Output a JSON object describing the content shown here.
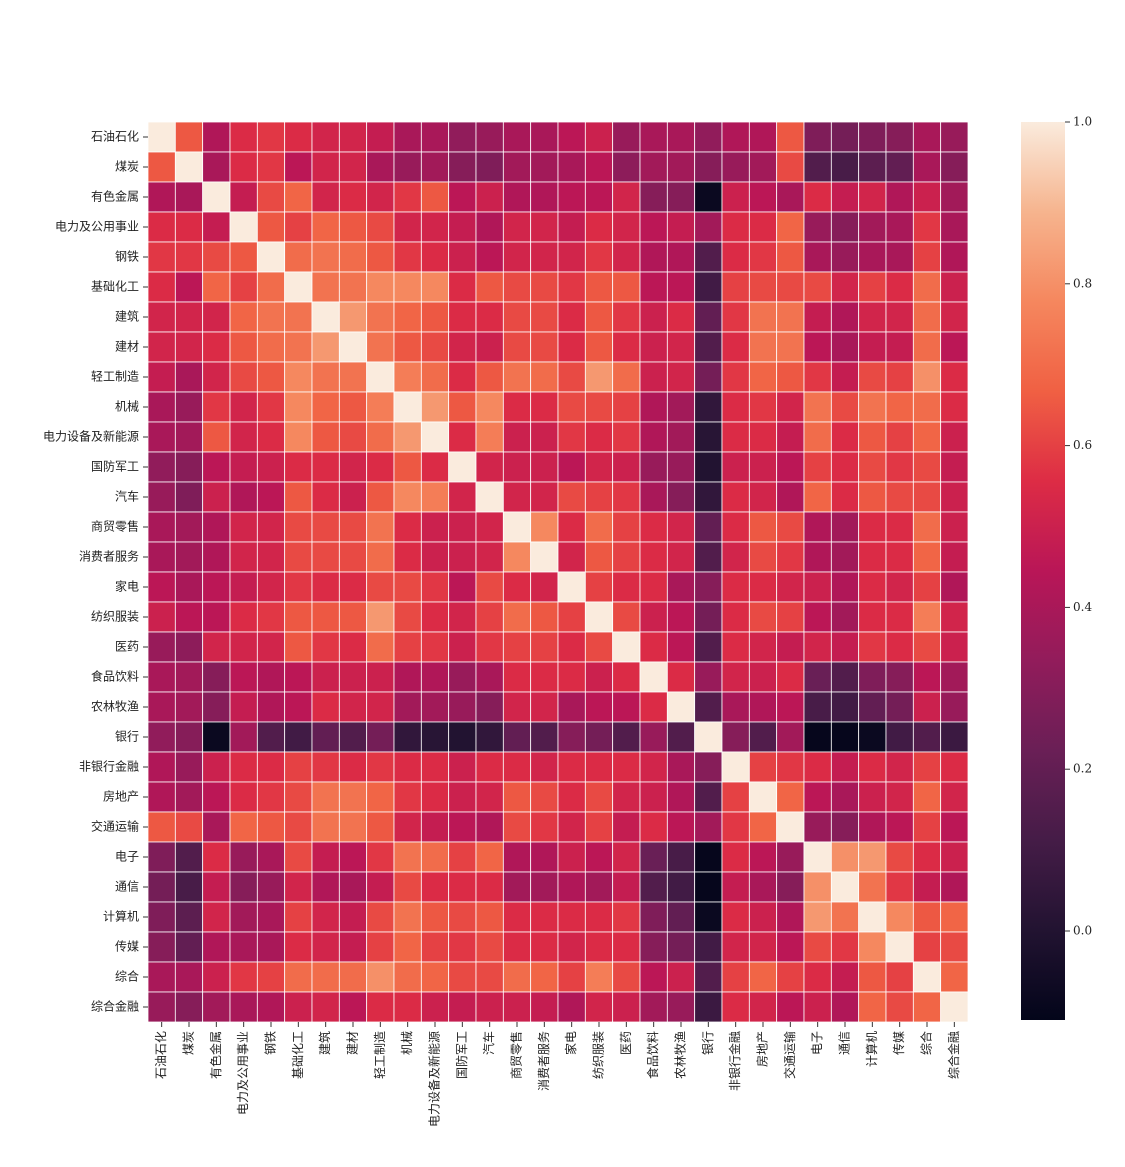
{
  "chart_data": {
    "type": "heatmap",
    "colormap": "rocket",
    "cell_border": "#ffffff",
    "categories": [
      "石油石化",
      "煤炭",
      "有色金属",
      "电力及公用事业",
      "钢铁",
      "基础化工",
      "建筑",
      "建材",
      "轻工制造",
      "机械",
      "电力设备及新能源",
      "国防军工",
      "汽车",
      "商贸零售",
      "消费者服务",
      "家电",
      "纺织服装",
      "医药",
      "食品饮料",
      "农林牧渔",
      "银行",
      "非银行金融",
      "房地产",
      "交通运输",
      "电子",
      "通信",
      "计算机",
      "传媒",
      "综合",
      "综合金融"
    ],
    "values": [
      [
        1,
        0.65,
        0.42,
        0.55,
        0.58,
        0.55,
        0.52,
        0.52,
        0.48,
        0.4,
        0.4,
        0.33,
        0.35,
        0.4,
        0.4,
        0.45,
        0.5,
        0.35,
        0.4,
        0.4,
        0.33,
        0.42,
        0.42,
        0.65,
        0.28,
        0.25,
        0.28,
        0.3,
        0.4,
        0.35
      ],
      [
        0.65,
        1,
        0.4,
        0.55,
        0.58,
        0.45,
        0.52,
        0.52,
        0.4,
        0.35,
        0.38,
        0.3,
        0.28,
        0.38,
        0.38,
        0.4,
        0.45,
        0.32,
        0.38,
        0.38,
        0.3,
        0.35,
        0.38,
        0.62,
        0.15,
        0.12,
        0.18,
        0.2,
        0.4,
        0.3
      ],
      [
        0.42,
        0.4,
        1,
        0.48,
        0.62,
        0.68,
        0.52,
        0.55,
        0.52,
        0.58,
        0.65,
        0.45,
        0.5,
        0.42,
        0.42,
        0.45,
        0.45,
        0.52,
        0.3,
        0.3,
        -0.08,
        0.5,
        0.45,
        0.4,
        0.55,
        0.48,
        0.52,
        0.42,
        0.5,
        0.38
      ],
      [
        0.55,
        0.55,
        0.48,
        1,
        0.65,
        0.6,
        0.68,
        0.65,
        0.62,
        0.52,
        0.52,
        0.48,
        0.42,
        0.52,
        0.52,
        0.48,
        0.55,
        0.52,
        0.45,
        0.48,
        0.38,
        0.55,
        0.55,
        0.68,
        0.35,
        0.3,
        0.38,
        0.4,
        0.58,
        0.4
      ],
      [
        0.58,
        0.58,
        0.62,
        0.65,
        1,
        0.7,
        0.72,
        0.7,
        0.65,
        0.58,
        0.55,
        0.5,
        0.45,
        0.52,
        0.52,
        0.52,
        0.58,
        0.52,
        0.42,
        0.42,
        0.15,
        0.55,
        0.58,
        0.65,
        0.4,
        0.35,
        0.4,
        0.4,
        0.6,
        0.42
      ],
      [
        0.55,
        0.45,
        0.68,
        0.6,
        0.7,
        1,
        0.72,
        0.72,
        0.78,
        0.78,
        0.78,
        0.55,
        0.65,
        0.62,
        0.62,
        0.58,
        0.65,
        0.65,
        0.45,
        0.45,
        0.1,
        0.6,
        0.62,
        0.62,
        0.62,
        0.52,
        0.6,
        0.55,
        0.7,
        0.5
      ],
      [
        0.52,
        0.52,
        0.52,
        0.68,
        0.72,
        0.72,
        1,
        0.82,
        0.72,
        0.68,
        0.65,
        0.55,
        0.55,
        0.62,
        0.62,
        0.55,
        0.65,
        0.58,
        0.5,
        0.55,
        0.2,
        0.58,
        0.72,
        0.72,
        0.48,
        0.42,
        0.52,
        0.52,
        0.7,
        0.52
      ],
      [
        0.52,
        0.52,
        0.55,
        0.65,
        0.7,
        0.72,
        0.82,
        1,
        0.72,
        0.65,
        0.62,
        0.52,
        0.5,
        0.62,
        0.62,
        0.55,
        0.65,
        0.55,
        0.5,
        0.52,
        0.15,
        0.55,
        0.72,
        0.72,
        0.45,
        0.4,
        0.48,
        0.48,
        0.7,
        0.45
      ],
      [
        0.48,
        0.4,
        0.52,
        0.62,
        0.65,
        0.78,
        0.72,
        0.72,
        1,
        0.75,
        0.7,
        0.55,
        0.65,
        0.72,
        0.7,
        0.62,
        0.82,
        0.7,
        0.5,
        0.52,
        0.25,
        0.58,
        0.68,
        0.65,
        0.58,
        0.48,
        0.62,
        0.6,
        0.8,
        0.55
      ],
      [
        0.4,
        0.35,
        0.58,
        0.52,
        0.58,
        0.78,
        0.68,
        0.65,
        0.75,
        1,
        0.82,
        0.65,
        0.78,
        0.55,
        0.55,
        0.62,
        0.62,
        0.6,
        0.42,
        0.38,
        0.05,
        0.55,
        0.58,
        0.52,
        0.72,
        0.62,
        0.72,
        0.68,
        0.7,
        0.55
      ],
      [
        0.4,
        0.38,
        0.65,
        0.52,
        0.55,
        0.78,
        0.65,
        0.62,
        0.7,
        0.82,
        1,
        0.55,
        0.75,
        0.5,
        0.5,
        0.58,
        0.55,
        0.58,
        0.42,
        0.38,
        0.02,
        0.55,
        0.55,
        0.48,
        0.7,
        0.55,
        0.65,
        0.6,
        0.68,
        0.5
      ],
      [
        0.33,
        0.3,
        0.45,
        0.48,
        0.5,
        0.55,
        0.55,
        0.52,
        0.55,
        0.65,
        0.55,
        1,
        0.52,
        0.5,
        0.5,
        0.45,
        0.52,
        0.5,
        0.35,
        0.35,
        0.0,
        0.5,
        0.5,
        0.45,
        0.6,
        0.55,
        0.62,
        0.58,
        0.62,
        0.48
      ],
      [
        0.35,
        0.28,
        0.5,
        0.42,
        0.45,
        0.65,
        0.55,
        0.5,
        0.65,
        0.78,
        0.75,
        0.52,
        1,
        0.52,
        0.52,
        0.62,
        0.6,
        0.58,
        0.4,
        0.3,
        0.05,
        0.55,
        0.52,
        0.42,
        0.68,
        0.55,
        0.65,
        0.62,
        0.62,
        0.5
      ],
      [
        0.4,
        0.38,
        0.42,
        0.52,
        0.52,
        0.62,
        0.62,
        0.62,
        0.72,
        0.55,
        0.5,
        0.5,
        0.52,
        1,
        0.78,
        0.55,
        0.7,
        0.6,
        0.55,
        0.52,
        0.2,
        0.55,
        0.65,
        0.62,
        0.42,
        0.38,
        0.55,
        0.55,
        0.7,
        0.5
      ],
      [
        0.4,
        0.38,
        0.42,
        0.52,
        0.52,
        0.62,
        0.62,
        0.62,
        0.7,
        0.55,
        0.5,
        0.5,
        0.52,
        0.78,
        1,
        0.52,
        0.65,
        0.6,
        0.55,
        0.52,
        0.15,
        0.52,
        0.62,
        0.58,
        0.42,
        0.38,
        0.55,
        0.55,
        0.68,
        0.48
      ],
      [
        0.45,
        0.4,
        0.45,
        0.48,
        0.52,
        0.58,
        0.55,
        0.55,
        0.62,
        0.62,
        0.58,
        0.45,
        0.62,
        0.55,
        0.52,
        1,
        0.6,
        0.55,
        0.55,
        0.4,
        0.3,
        0.55,
        0.55,
        0.52,
        0.5,
        0.42,
        0.55,
        0.52,
        0.6,
        0.42
      ],
      [
        0.5,
        0.45,
        0.45,
        0.55,
        0.58,
        0.65,
        0.65,
        0.65,
        0.82,
        0.62,
        0.55,
        0.52,
        0.6,
        0.7,
        0.65,
        0.6,
        1,
        0.62,
        0.5,
        0.45,
        0.25,
        0.55,
        0.62,
        0.6,
        0.45,
        0.38,
        0.55,
        0.55,
        0.75,
        0.52
      ],
      [
        0.35,
        0.32,
        0.52,
        0.52,
        0.52,
        0.65,
        0.58,
        0.55,
        0.7,
        0.6,
        0.58,
        0.5,
        0.58,
        0.6,
        0.6,
        0.55,
        0.62,
        1,
        0.55,
        0.45,
        0.15,
        0.55,
        0.52,
        0.48,
        0.52,
        0.48,
        0.58,
        0.55,
        0.62,
        0.5
      ],
      [
        0.4,
        0.38,
        0.3,
        0.45,
        0.42,
        0.45,
        0.5,
        0.5,
        0.5,
        0.42,
        0.42,
        0.35,
        0.4,
        0.55,
        0.55,
        0.55,
        0.5,
        0.55,
        1,
        0.55,
        0.35,
        0.52,
        0.5,
        0.55,
        0.22,
        0.15,
        0.28,
        0.3,
        0.45,
        0.38
      ],
      [
        0.4,
        0.38,
        0.3,
        0.48,
        0.42,
        0.45,
        0.55,
        0.52,
        0.52,
        0.38,
        0.38,
        0.35,
        0.3,
        0.52,
        0.52,
        0.4,
        0.45,
        0.45,
        0.55,
        1,
        0.15,
        0.4,
        0.42,
        0.45,
        0.12,
        0.1,
        0.2,
        0.25,
        0.5,
        0.35
      ],
      [
        0.33,
        0.3,
        -0.08,
        0.38,
        0.15,
        0.1,
        0.2,
        0.15,
        0.25,
        0.05,
        0.02,
        0.0,
        0.05,
        0.2,
        0.15,
        0.3,
        0.25,
        0.15,
        0.35,
        0.15,
        1,
        0.3,
        0.15,
        0.38,
        -0.1,
        -0.1,
        -0.08,
        0.1,
        0.15,
        0.08
      ],
      [
        0.42,
        0.35,
        0.5,
        0.55,
        0.55,
        0.6,
        0.58,
        0.55,
        0.58,
        0.55,
        0.55,
        0.5,
        0.55,
        0.55,
        0.52,
        0.55,
        0.55,
        0.55,
        0.52,
        0.4,
        0.3,
        1,
        0.6,
        0.58,
        0.55,
        0.48,
        0.55,
        0.52,
        0.6,
        0.55
      ],
      [
        0.42,
        0.38,
        0.45,
        0.55,
        0.58,
        0.62,
        0.72,
        0.72,
        0.68,
        0.58,
        0.55,
        0.5,
        0.52,
        0.65,
        0.62,
        0.55,
        0.62,
        0.52,
        0.5,
        0.42,
        0.15,
        0.6,
        1,
        0.68,
        0.45,
        0.4,
        0.5,
        0.52,
        0.68,
        0.52
      ],
      [
        0.65,
        0.62,
        0.4,
        0.68,
        0.65,
        0.62,
        0.72,
        0.72,
        0.65,
        0.52,
        0.48,
        0.45,
        0.42,
        0.62,
        0.58,
        0.52,
        0.6,
        0.48,
        0.55,
        0.45,
        0.38,
        0.58,
        0.68,
        1,
        0.35,
        0.3,
        0.42,
        0.45,
        0.6,
        0.45
      ],
      [
        0.28,
        0.15,
        0.55,
        0.35,
        0.4,
        0.62,
        0.48,
        0.45,
        0.58,
        0.72,
        0.7,
        0.6,
        0.68,
        0.42,
        0.42,
        0.5,
        0.45,
        0.52,
        0.22,
        0.12,
        -0.1,
        0.55,
        0.45,
        0.35,
        1,
        0.8,
        0.82,
        0.62,
        0.55,
        0.5
      ],
      [
        0.25,
        0.12,
        0.48,
        0.3,
        0.35,
        0.52,
        0.42,
        0.4,
        0.48,
        0.62,
        0.55,
        0.55,
        0.55,
        0.38,
        0.38,
        0.42,
        0.38,
        0.48,
        0.15,
        0.1,
        -0.1,
        0.48,
        0.4,
        0.3,
        0.8,
        1,
        0.72,
        0.58,
        0.48,
        0.42
      ],
      [
        0.28,
        0.18,
        0.52,
        0.38,
        0.4,
        0.6,
        0.52,
        0.48,
        0.62,
        0.72,
        0.65,
        0.62,
        0.65,
        0.55,
        0.55,
        0.55,
        0.55,
        0.58,
        0.28,
        0.2,
        -0.08,
        0.55,
        0.5,
        0.42,
        0.82,
        0.72,
        1,
        0.78,
        0.65,
        0.68
      ],
      [
        0.3,
        0.2,
        0.42,
        0.4,
        0.4,
        0.55,
        0.52,
        0.48,
        0.6,
        0.68,
        0.6,
        0.58,
        0.62,
        0.55,
        0.55,
        0.52,
        0.55,
        0.55,
        0.3,
        0.25,
        0.1,
        0.52,
        0.52,
        0.45,
        0.62,
        0.58,
        0.78,
        1,
        0.6,
        0.62
      ],
      [
        0.4,
        0.4,
        0.5,
        0.58,
        0.6,
        0.7,
        0.7,
        0.7,
        0.8,
        0.7,
        0.68,
        0.62,
        0.62,
        0.7,
        0.68,
        0.6,
        0.75,
        0.62,
        0.45,
        0.5,
        0.15,
        0.6,
        0.68,
        0.6,
        0.55,
        0.48,
        0.65,
        0.6,
        1,
        0.68
      ],
      [
        0.35,
        0.3,
        0.38,
        0.4,
        0.42,
        0.5,
        0.52,
        0.45,
        0.55,
        0.55,
        0.5,
        0.48,
        0.5,
        0.5,
        0.48,
        0.42,
        0.52,
        0.5,
        0.38,
        0.35,
        0.08,
        0.55,
        0.52,
        0.45,
        0.5,
        0.42,
        0.68,
        0.62,
        0.68,
        1
      ]
    ],
    "clim": [
      -0.11,
      1.0
    ],
    "cticks": [
      {
        "value": 0,
        "label": "0.0"
      },
      {
        "value": 0.2,
        "label": "0.2"
      },
      {
        "value": 0.4,
        "label": "0.4"
      },
      {
        "value": 0.6,
        "label": "0.6"
      },
      {
        "value": 0.8,
        "label": "0.8"
      },
      {
        "value": 1,
        "label": "1.0"
      }
    ]
  }
}
